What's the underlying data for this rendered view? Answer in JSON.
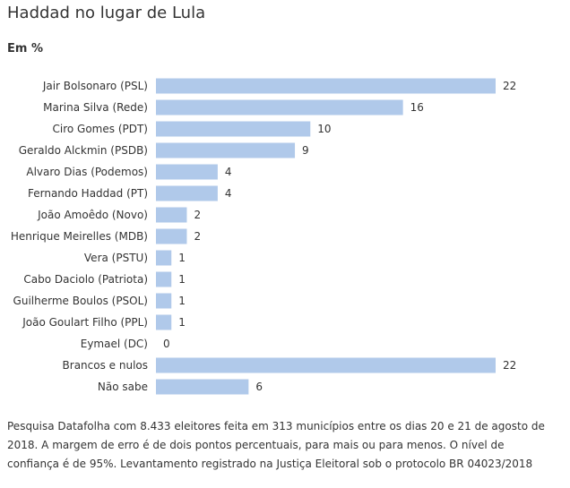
{
  "chart_data": {
    "type": "bar",
    "orientation": "horizontal",
    "title": "Haddad no lugar de Lula",
    "subtitle": "Em %",
    "categories": [
      "Jair Bolsonaro (PSL)",
      "Marina Silva (Rede)",
      "Ciro Gomes (PDT)",
      "Geraldo Alckmin (PSDB)",
      "Alvaro Dias (Podemos)",
      "Fernando Haddad (PT)",
      "João Amoêdo (Novo)",
      "Henrique Meirelles (MDB)",
      "Vera (PSTU)",
      "Cabo Daciolo (Patriota)",
      "Guilherme Boulos (PSOL)",
      "João Goulart Filho (PPL)",
      "Eymael (DC)",
      "Brancos e nulos",
      "Não sabe"
    ],
    "values": [
      22,
      16,
      10,
      9,
      4,
      4,
      2,
      2,
      1,
      1,
      1,
      1,
      0,
      22,
      6
    ],
    "value_labels": [
      "22",
      "16",
      "10",
      "9",
      "4",
      "4",
      "2",
      "2",
      "1",
      "1",
      "1",
      "1",
      "0",
      "22",
      "6"
    ],
    "xlim": [
      0,
      22
    ],
    "grid": false,
    "legend": "none",
    "bar_color": "#b0c9ea"
  },
  "footnote": "Pesquisa Datafolha com 8.433 eleitores feita em 313 municípios entre os dias 20 e 21 de agosto de 2018. A margem de erro é de dois pontos percentuais, para mais ou para menos. O nível de confiança é de 95%. Levantamento registrado na Justiça Eleitoral sob o protocolo BR 04023/2018"
}
